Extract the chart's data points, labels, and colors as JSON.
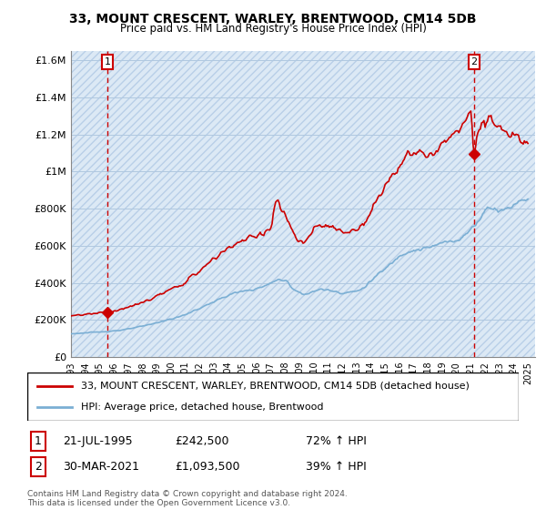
{
  "title": "33, MOUNT CRESCENT, WARLEY, BRENTWOOD, CM14 5DB",
  "subtitle": "Price paid vs. HM Land Registry's House Price Index (HPI)",
  "hpi_color": "#7bafd4",
  "price_color": "#cc0000",
  "bg_color": "#dce9f5",
  "grid_color": "#b0c8e0",
  "sale1_x": 1995.55,
  "sale1_y": 242500,
  "sale2_x": 2021.24,
  "sale2_y": 1093500,
  "sale1_label": "1",
  "sale2_label": "2",
  "sale1_date": "21-JUL-1995",
  "sale1_price": "£242,500",
  "sale1_hpi": "72% ↑ HPI",
  "sale2_date": "30-MAR-2021",
  "sale2_price": "£1,093,500",
  "sale2_hpi": "39% ↑ HPI",
  "legend_line1": "33, MOUNT CRESCENT, WARLEY, BRENTWOOD, CM14 5DB (detached house)",
  "legend_line2": "HPI: Average price, detached house, Brentwood",
  "footnote": "Contains HM Land Registry data © Crown copyright and database right 2024.\nThis data is licensed under the Open Government Licence v3.0.",
  "xlim_start": 1993.0,
  "xlim_end": 2025.5,
  "ylim": [
    0,
    1650000
  ],
  "yticks": [
    0,
    200000,
    400000,
    600000,
    800000,
    1000000,
    1200000,
    1400000,
    1600000
  ],
  "ytick_labels": [
    "£0",
    "£200K",
    "£400K",
    "£600K",
    "£800K",
    "£1M",
    "£1.2M",
    "£1.4M",
    "£1.6M"
  ],
  "xticks": [
    1993,
    1994,
    1995,
    1996,
    1997,
    1998,
    1999,
    2000,
    2001,
    2002,
    2003,
    2004,
    2005,
    2006,
    2007,
    2008,
    2009,
    2010,
    2011,
    2012,
    2013,
    2014,
    2015,
    2016,
    2017,
    2018,
    2019,
    2020,
    2021,
    2022,
    2023,
    2024,
    2025
  ]
}
